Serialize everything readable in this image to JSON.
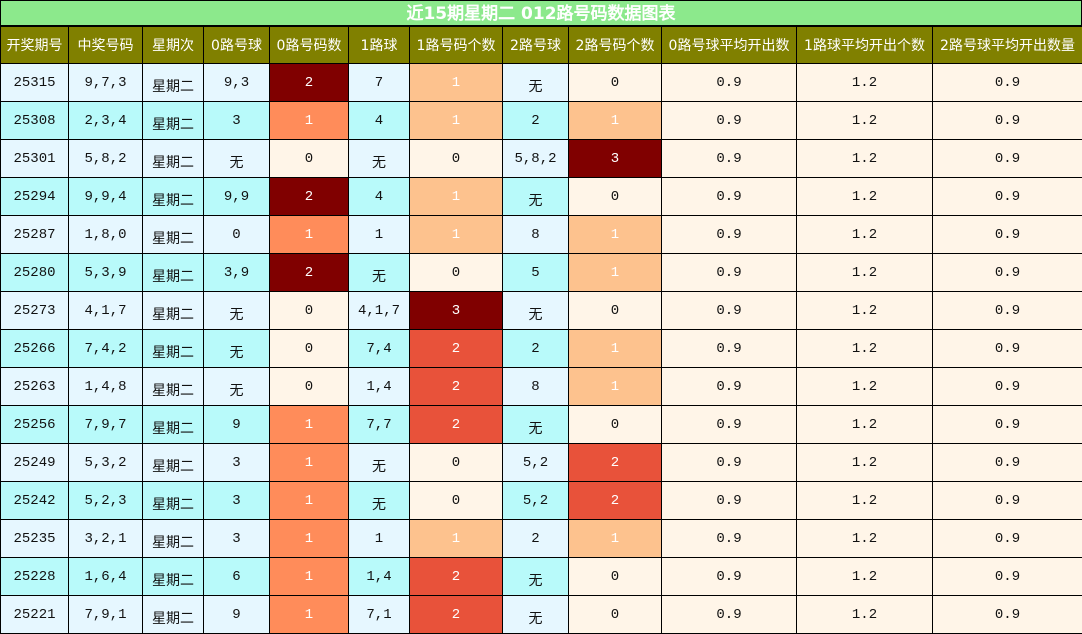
{
  "title": "近15期星期二 012路号码数据图表",
  "headers": [
    "开奖期号",
    "中奖号码",
    "星期次",
    "0路号球",
    "0路号码数",
    "1路球",
    "1路号码个数",
    "2路号球",
    "2路号码个数",
    "0路号球平均开出数",
    "1路球平均开出个数",
    "2路号球平均开出数量"
  ],
  "colors": {
    "title_bg": "#8ce98c",
    "header_bg": "#808000",
    "row_light": "#e6f7ff",
    "row_cyan": "#b8fafa",
    "avg_bg": "#fff5e8",
    "zero_bg": "#fff5e8",
    "count_low": "#fdc28e",
    "count_mid": "#ff8c5a",
    "count_high": "#e8523a",
    "count_max": "#800000"
  },
  "rows": [
    {
      "issue": "25315",
      "numbers": "9,7,3",
      "weekday": "星期二",
      "r0": "9,3",
      "c0": "2",
      "r1": "7",
      "c1": "1",
      "r2": "无",
      "c2": "0",
      "a0": "0.9",
      "a1": "1.2",
      "a2": "0.9"
    },
    {
      "issue": "25308",
      "numbers": "2,3,4",
      "weekday": "星期二",
      "r0": "3",
      "c0": "1",
      "r1": "4",
      "c1": "1",
      "r2": "2",
      "c2": "1",
      "a0": "0.9",
      "a1": "1.2",
      "a2": "0.9"
    },
    {
      "issue": "25301",
      "numbers": "5,8,2",
      "weekday": "星期二",
      "r0": "无",
      "c0": "0",
      "r1": "无",
      "c1": "0",
      "r2": "5,8,2",
      "c2": "3",
      "a0": "0.9",
      "a1": "1.2",
      "a2": "0.9"
    },
    {
      "issue": "25294",
      "numbers": "9,9,4",
      "weekday": "星期二",
      "r0": "9,9",
      "c0": "2",
      "r1": "4",
      "c1": "1",
      "r2": "无",
      "c2": "0",
      "a0": "0.9",
      "a1": "1.2",
      "a2": "0.9"
    },
    {
      "issue": "25287",
      "numbers": "1,8,0",
      "weekday": "星期二",
      "r0": "0",
      "c0": "1",
      "r1": "1",
      "c1": "1",
      "r2": "8",
      "c2": "1",
      "a0": "0.9",
      "a1": "1.2",
      "a2": "0.9"
    },
    {
      "issue": "25280",
      "numbers": "5,3,9",
      "weekday": "星期二",
      "r0": "3,9",
      "c0": "2",
      "r1": "无",
      "c1": "0",
      "r2": "5",
      "c2": "1",
      "a0": "0.9",
      "a1": "1.2",
      "a2": "0.9"
    },
    {
      "issue": "25273",
      "numbers": "4,1,7",
      "weekday": "星期二",
      "r0": "无",
      "c0": "0",
      "r1": "4,1,7",
      "c1": "3",
      "r2": "无",
      "c2": "0",
      "a0": "0.9",
      "a1": "1.2",
      "a2": "0.9"
    },
    {
      "issue": "25266",
      "numbers": "7,4,2",
      "weekday": "星期二",
      "r0": "无",
      "c0": "0",
      "r1": "7,4",
      "c1": "2",
      "r2": "2",
      "c2": "1",
      "a0": "0.9",
      "a1": "1.2",
      "a2": "0.9"
    },
    {
      "issue": "25263",
      "numbers": "1,4,8",
      "weekday": "星期二",
      "r0": "无",
      "c0": "0",
      "r1": "1,4",
      "c1": "2",
      "r2": "8",
      "c2": "1",
      "a0": "0.9",
      "a1": "1.2",
      "a2": "0.9"
    },
    {
      "issue": "25256",
      "numbers": "7,9,7",
      "weekday": "星期二",
      "r0": "9",
      "c0": "1",
      "r1": "7,7",
      "c1": "2",
      "r2": "无",
      "c2": "0",
      "a0": "0.9",
      "a1": "1.2",
      "a2": "0.9"
    },
    {
      "issue": "25249",
      "numbers": "5,3,2",
      "weekday": "星期二",
      "r0": "3",
      "c0": "1",
      "r1": "无",
      "c1": "0",
      "r2": "5,2",
      "c2": "2",
      "a0": "0.9",
      "a1": "1.2",
      "a2": "0.9"
    },
    {
      "issue": "25242",
      "numbers": "5,2,3",
      "weekday": "星期二",
      "r0": "3",
      "c0": "1",
      "r1": "无",
      "c1": "0",
      "r2": "5,2",
      "c2": "2",
      "a0": "0.9",
      "a1": "1.2",
      "a2": "0.9"
    },
    {
      "issue": "25235",
      "numbers": "3,2,1",
      "weekday": "星期二",
      "r0": "3",
      "c0": "1",
      "r1": "1",
      "c1": "1",
      "r2": "2",
      "c2": "1",
      "a0": "0.9",
      "a1": "1.2",
      "a2": "0.9"
    },
    {
      "issue": "25228",
      "numbers": "1,6,4",
      "weekday": "星期二",
      "r0": "6",
      "c0": "1",
      "r1": "1,4",
      "c1": "2",
      "r2": "无",
      "c2": "0",
      "a0": "0.9",
      "a1": "1.2",
      "a2": "0.9"
    },
    {
      "issue": "25221",
      "numbers": "7,9,1",
      "weekday": "星期二",
      "r0": "9",
      "c0": "1",
      "r1": "7,1",
      "c1": "2",
      "r2": "无",
      "c2": "0",
      "a0": "0.9",
      "a1": "1.2",
      "a2": "0.9"
    }
  ]
}
